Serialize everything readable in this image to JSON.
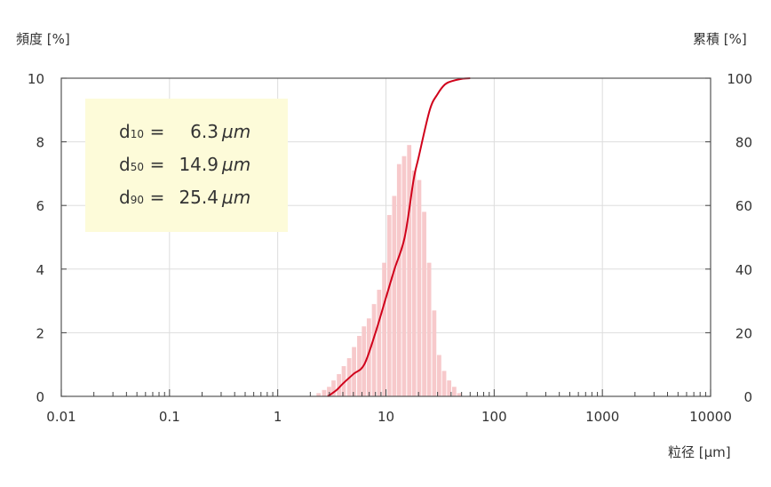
{
  "labels": {
    "y_left_title": "頻度 [%]",
    "y_right_title": "累積 [%]",
    "x_title": "粒径 [µm]"
  },
  "stats": [
    {
      "label": "d",
      "sub": "10",
      "eq": "=",
      "value": "6.3",
      "unit": "µm"
    },
    {
      "label": "d",
      "sub": "50",
      "eq": "=",
      "value": "14.9",
      "unit": "µm"
    },
    {
      "label": "d",
      "sub": "90",
      "eq": "=",
      "value": "25.4",
      "unit": "µm"
    }
  ],
  "colors": {
    "bar": "#f7c9cb",
    "curve": "#d0021b",
    "grid": "#dddddd",
    "stats_bg": "#fdfbd9"
  },
  "chart_data": {
    "type": "bar",
    "x_scale": "log",
    "xlim": [
      0.01,
      10000
    ],
    "x_ticks": [
      "0.01",
      "0.1",
      "1",
      "10",
      "100",
      "1000",
      "10000"
    ],
    "ylim_left": [
      0,
      10
    ],
    "y_ticks_left": [
      "0",
      "2",
      "4",
      "6",
      "8",
      "10"
    ],
    "ylim_right": [
      0,
      100
    ],
    "y_ticks_right": [
      "0",
      "20",
      "40",
      "60",
      "80",
      "100"
    ],
    "grid": true,
    "series": [
      {
        "type": "bar",
        "axis": "left",
        "x": [
          2.4,
          2.7,
          3.0,
          3.3,
          3.7,
          4.1,
          4.6,
          5.1,
          5.7,
          6.3,
          7.0,
          7.8,
          8.7,
          9.7,
          10.8,
          12.0,
          13.3,
          14.8,
          16.5,
          18.3,
          20.4,
          22.7,
          25.2,
          28.1,
          31.2,
          34.7,
          38.6,
          43.0,
          47.8
        ],
        "values": [
          0.1,
          0.2,
          0.3,
          0.5,
          0.7,
          0.95,
          1.2,
          1.55,
          1.9,
          2.2,
          2.45,
          2.9,
          3.35,
          4.2,
          5.7,
          6.3,
          7.3,
          7.55,
          7.9,
          7.1,
          6.8,
          5.8,
          4.2,
          2.7,
          1.3,
          0.8,
          0.5,
          0.3,
          0.1
        ]
      },
      {
        "type": "line",
        "axis": "right",
        "x": [
          2.9,
          3.5,
          4.0,
          5.0,
          6.3,
          8.0,
          10.0,
          12.0,
          14.9,
          18.0,
          20.0,
          25.4,
          30.0,
          35.0,
          40.0,
          50.0,
          60.0
        ],
        "values": [
          0,
          2,
          4,
          7,
          10,
          20,
          31,
          40,
          50,
          68,
          75,
          90,
          95,
          98,
          99,
          99.8,
          100
        ]
      }
    ]
  }
}
